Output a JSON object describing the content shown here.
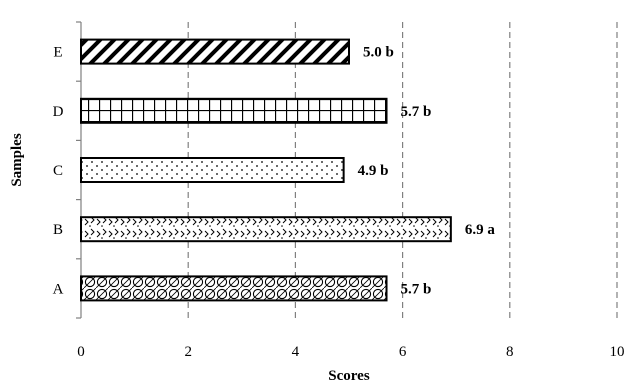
{
  "chart_data": {
    "type": "bar",
    "orientation": "horizontal",
    "categories": [
      "A",
      "B",
      "C",
      "D",
      "E"
    ],
    "values": [
      5.7,
      6.9,
      4.9,
      5.7,
      5.0
    ],
    "data_labels": [
      "5.7 b",
      "6.9 a",
      "4.9 b",
      "5.7 b",
      "5.0 b"
    ],
    "patterns": [
      "circles",
      "zigzag-dots",
      "dots",
      "grid",
      "diagonal-stripes"
    ],
    "xlabel": "Scores",
    "ylabel": "Samples",
    "xlim": [
      0,
      10
    ],
    "xticks": [
      0,
      2,
      4,
      6,
      8,
      10
    ],
    "grid": "vertical dashed",
    "legend": "none",
    "colors": {
      "bar_stroke": "#000000",
      "grid": "#808080",
      "background": "#ffffff"
    }
  }
}
